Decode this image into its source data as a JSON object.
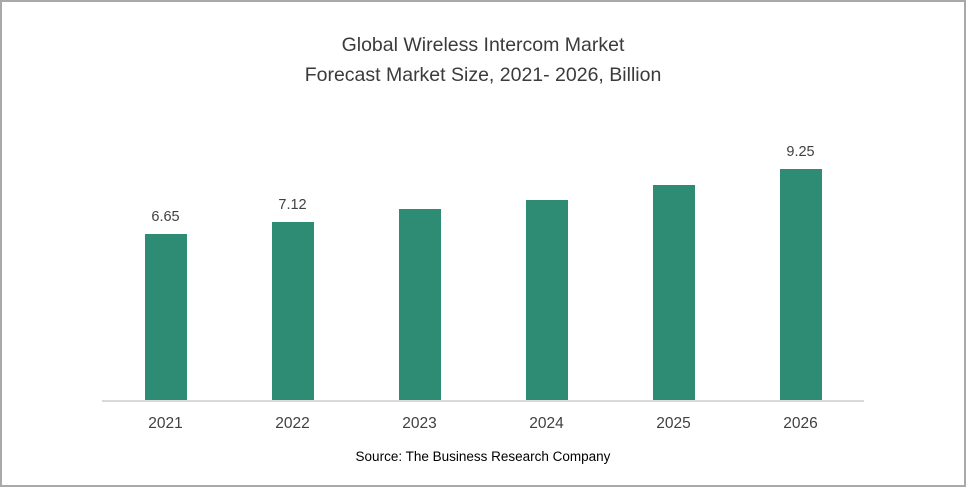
{
  "chart": {
    "title_line1": "Global Wireless Intercom Market",
    "title_line2": "Forecast Market Size, 2021- 2026, Billion",
    "source": "Source: The Business Research Company",
    "bar_color": "#2E8B74",
    "axis_line_color": "#d9d9d9"
  },
  "chart_data": {
    "type": "bar",
    "title": "Global Wireless Intercom Market Forecast Market Size, 2021- 2026, Billion",
    "categories": [
      "2021",
      "2022",
      "2023",
      "2024",
      "2025",
      "2026"
    ],
    "values": [
      6.65,
      7.12,
      7.65,
      8.0,
      8.6,
      9.25
    ],
    "data_labels": [
      "6.65",
      "7.12",
      "",
      "",
      "",
      "9.25"
    ],
    "xlabel": "",
    "ylabel": "",
    "ylim": [
      0,
      10
    ],
    "grid": false,
    "legend": false,
    "annotations": [
      "Source: The Business Research Company"
    ]
  }
}
